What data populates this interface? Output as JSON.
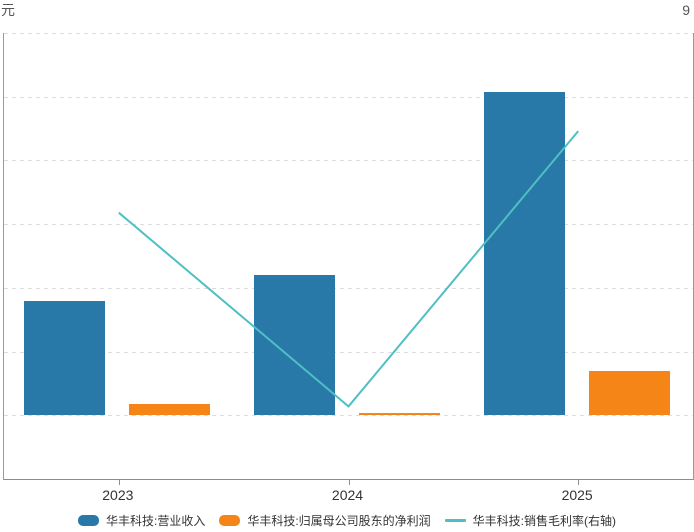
{
  "axes": {
    "left_unit_label": "元",
    "right_top_label": "9"
  },
  "x_labels": [
    "2023",
    "2024",
    "2025"
  ],
  "legend": {
    "items": [
      {
        "label": "华丰科技:营业收入",
        "swatch": "bar",
        "color": "#2878A8"
      },
      {
        "label": "华丰科技:归属母公司股东的净利润",
        "swatch": "bar",
        "color": "#F58516"
      },
      {
        "label": "华丰科技:销售毛利率(右轴)",
        "swatch": "line",
        "color": "#4FBFC4"
      }
    ]
  },
  "chart_data": {
    "type": "bar",
    "subtype": "bar+line combo, dual axis",
    "categories": [
      "2023",
      "2024",
      "2025"
    ],
    "series": [
      {
        "name": "华丰科技:营业收入",
        "type": "bar",
        "axis": "left",
        "color": "#2878A8",
        "values": [
          9.0,
          11.0,
          25.4
        ]
      },
      {
        "name": "华丰科技:归属母公司股东的净利润",
        "type": "bar",
        "axis": "left",
        "color": "#F58516",
        "values": [
          0.9,
          0.15,
          3.5
        ]
      },
      {
        "name": "华丰科技:销售毛利率(右轴)",
        "type": "line",
        "axis": "right",
        "color": "#4FBFC4",
        "values": [
          30.9,
          15.7,
          37.3
        ]
      }
    ],
    "left_axis": {
      "unit_label": "元",
      "min": -5,
      "max": 30,
      "grid_interval": 5,
      "tick_labels_visible": false
    },
    "right_axis": {
      "min": 10,
      "max": 45,
      "grid_interval": 5,
      "visible_label": "9",
      "tick_labels_visible": false
    },
    "grid": {
      "style": "dashed",
      "color": "#dcdcdc",
      "horizontal": true,
      "vertical": false
    },
    "legend_position": "bottom",
    "bars_baseline": 0
  },
  "colors": {
    "revenue_bar": "#2878A8",
    "profit_bar": "#F58516",
    "margin_line": "#4FBFC4",
    "axis_line": "#8c8c8c",
    "grid_line": "#dcdcdc",
    "tick_text": "#333333",
    "corner_text": "#555555",
    "background": "#ffffff"
  }
}
